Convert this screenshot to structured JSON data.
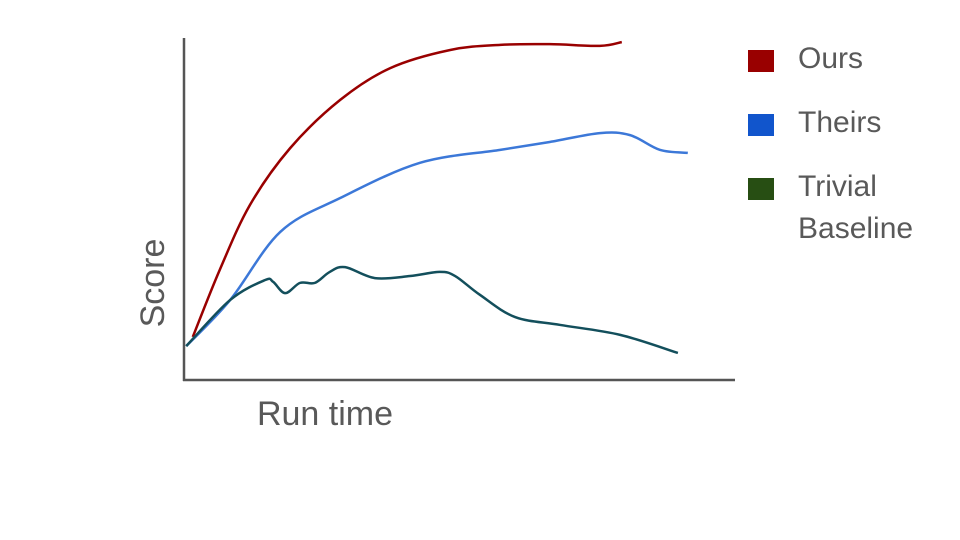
{
  "chart_data": {
    "type": "line",
    "x_label": "Run time",
    "y_label": "Score",
    "xlim": [
      0,
      100
    ],
    "ylim": [
      0,
      100
    ],
    "series": [
      {
        "name": "Ours",
        "color": "#990000",
        "legend_color": "#990000",
        "x": [
          1.6,
          6.5,
          12,
          19.3,
          28.4,
          37.5,
          48.4,
          57.5,
          66.5,
          75.6,
          79.6
        ],
        "values": [
          12.6,
          32.2,
          51.2,
          67.8,
          81.9,
          91.2,
          96.5,
          98,
          98.2,
          97.7,
          98.8
        ]
      },
      {
        "name": "Theirs",
        "color": "#3c78d8",
        "legend_color": "#1155cc",
        "x": [
          0.4,
          8.4,
          17.5,
          28.4,
          42.9,
          57.5,
          66.5,
          75.6,
          81.1,
          86.5,
          91.6
        ],
        "values": [
          9.9,
          23.4,
          43.3,
          53.2,
          63.5,
          67.3,
          69.6,
          72.2,
          71.6,
          67.3,
          66.4
        ]
      },
      {
        "name": "Trivial Baseline",
        "color": "#134f5c",
        "legend_color": "#274e13",
        "x": [
          0.4,
          8.4,
          14.7,
          16.2,
          18.4,
          21.1,
          23.8,
          26.5,
          29.3,
          34.7,
          41.1,
          46.5,
          49.3,
          53.8,
          60.2,
          68.4,
          79.3,
          89.8
        ],
        "values": [
          9.9,
          23.4,
          29.2,
          28.7,
          25.4,
          28.4,
          28.4,
          31.6,
          33,
          29.8,
          30.4,
          31.6,
          30.4,
          24.9,
          18.4,
          16.1,
          13.2,
          7.9
        ]
      }
    ]
  }
}
